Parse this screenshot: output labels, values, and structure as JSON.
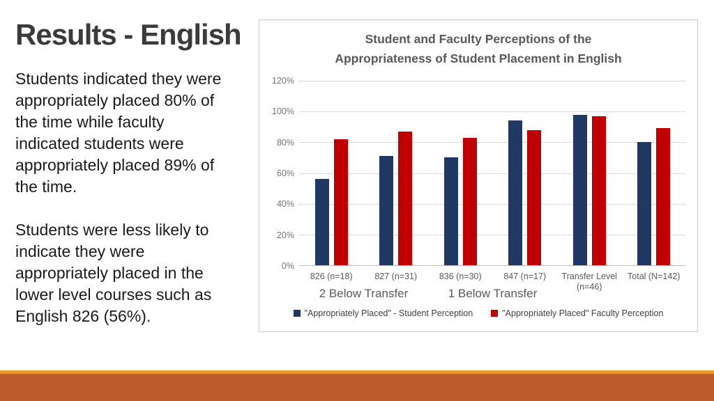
{
  "slide": {
    "title": "Results - English",
    "paragraphs": [
      "Students indicated they were appropriately placed 80% of the time while faculty indicated students were appropriately placed 89% of the time.",
      "Students were less likely to indicate they were appropriately placed in the lower level courses such as English 826 (56%)."
    ]
  },
  "chart_data": {
    "type": "bar",
    "title": "Student and Faculty Perceptions of the Appropriateness of Student Placement in English",
    "title_lines": [
      "Student and Faculty Perceptions of the",
      "Appropriateness of Student Placement in English"
    ],
    "categories": [
      "826 (n=18)",
      "827 (n=31)",
      "836 (n=30)",
      "847 (n=17)",
      "Transfer Level (n=46)",
      "Total (N=142)"
    ],
    "series": [
      {
        "name": "\"Appropriately Placed\" - Student Perception",
        "color": "#1F3864",
        "values": [
          56,
          71,
          70,
          94,
          98,
          80
        ]
      },
      {
        "name": "\"Appropriately Placed\" Faculty Perception",
        "color": "#C00000",
        "values": [
          82,
          87,
          83,
          88,
          97,
          89
        ]
      }
    ],
    "group_labels": [
      {
        "label": "2 Below Transfer",
        "start": 0,
        "end": 1
      },
      {
        "label": "1 Below Transfer",
        "start": 2,
        "end": 3
      }
    ],
    "xlabel": "",
    "ylabel": "",
    "ylim": [
      0,
      120
    ],
    "y_ticks": [
      "0%",
      "20%",
      "40%",
      "60%",
      "80%",
      "100%",
      "120%"
    ],
    "grid": true,
    "legend_position": "bottom"
  },
  "colors": {
    "student_series": "#1F3864",
    "faculty_series": "#C00000",
    "chart_border": "#C9C9C9",
    "gridline": "#D9D9D9",
    "footer_stripe": "#E8962E",
    "footer_bar": "#BD5B2D"
  }
}
